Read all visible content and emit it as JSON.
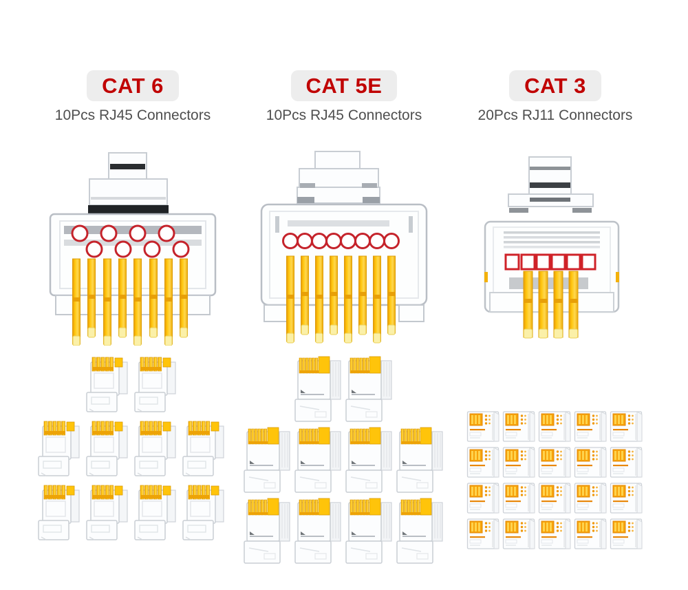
{
  "colors": {
    "badge_bg": "#ededed",
    "badge_text": "#c00000",
    "subtitle_text": "#4f4f4f",
    "pin_gold": "#ffc60d",
    "pin_shadow": "#e6980a",
    "pin_tip": "#fbf0a8",
    "marker_red": "#c5232b",
    "outline_gray": "#c9ced4"
  },
  "columns": [
    {
      "id": "cat6",
      "badge": "CAT 6",
      "subtitle": "10Pcs RJ45 Connectors",
      "connector_type": "RJ45",
      "pieces": 10,
      "front_view": {
        "contact_markers": "8 staggered circles",
        "pin_count": 8
      },
      "grid_rows": [
        2,
        4,
        4
      ]
    },
    {
      "id": "cat5e",
      "badge": "CAT 5E",
      "subtitle": "10Pcs RJ45 Connectors",
      "connector_type": "RJ45",
      "pieces": 10,
      "front_view": {
        "contact_markers": "8 inline circles",
        "pin_count": 8
      },
      "grid_rows": [
        2,
        4,
        4
      ]
    },
    {
      "id": "cat3",
      "badge": "CAT 3",
      "subtitle": "20Pcs RJ11 Connectors",
      "connector_type": "RJ11",
      "pieces": 20,
      "front_view": {
        "contact_markers": "6 inline squares",
        "pin_count": 4
      },
      "grid_rows": [
        5,
        5,
        5,
        5
      ]
    }
  ]
}
